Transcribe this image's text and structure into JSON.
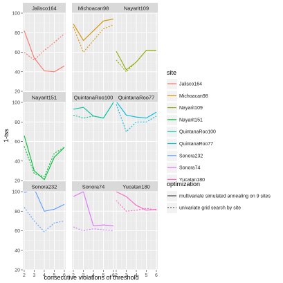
{
  "chart_data": {
    "type": "line",
    "facets": [
      "Jalisco164",
      "Michoacan98",
      "Nayarit109",
      "Nayarit151",
      "QuintanaRoo100",
      "QuintanaRoo77",
      "Sonora232",
      "Sonora74",
      "Yucatan180"
    ],
    "x": [
      2,
      3,
      4,
      5,
      6
    ],
    "xlabel": "consecutive violations of threshold",
    "ylabel": "1-tss",
    "ylim": [
      20,
      100
    ],
    "yticks": [
      20,
      40,
      60,
      80,
      100
    ],
    "xticks": [
      2,
      3,
      4,
      5,
      6
    ],
    "grid": true,
    "site_legend": {
      "title": "site",
      "entries": [
        {
          "name": "Jalisco164",
          "color": "#F8766D"
        },
        {
          "name": "Michoacan98",
          "color": "#D39200"
        },
        {
          "name": "Nayarit109",
          "color": "#93AA00"
        },
        {
          "name": "Nayarit151",
          "color": "#00BA38"
        },
        {
          "name": "QuintanaRoo100",
          "color": "#00C19F"
        },
        {
          "name": "QuintanaRoo77",
          "color": "#00B9E3"
        },
        {
          "name": "Sonora232",
          "color": "#619CFF"
        },
        {
          "name": "Sonora74",
          "color": "#DB72FB"
        },
        {
          "name": "Yucatan180",
          "color": "#FF61C3"
        }
      ]
    },
    "optimization_legend": {
      "title": "optimization",
      "entries": [
        {
          "name": "multivariate simulated annealing on 9 sites",
          "linetype": "solid"
        },
        {
          "name": "univariate grid search by site",
          "linetype": "dashed"
        }
      ]
    },
    "series": [
      {
        "site": "Jalisco164",
        "solid": [
          82,
          54,
          41,
          40,
          46
        ],
        "dashed": [
          60,
          52,
          62,
          70,
          79
        ]
      },
      {
        "site": "Michoacan98",
        "solid": [
          89,
          72,
          82,
          92,
          94
        ],
        "dashed": [
          86,
          60,
          72,
          84,
          88
        ]
      },
      {
        "site": "Nayarit109",
        "solid": [
          61,
          42,
          50,
          62,
          62
        ],
        "dashed": [
          52,
          40,
          50,
          62,
          62
        ]
      },
      {
        "site": "Nayarit151",
        "solid": [
          66,
          30,
          21,
          44,
          54
        ],
        "dashed": [
          55,
          27,
          24,
          48,
          54
        ]
      },
      {
        "site": "QuintanaRoo100",
        "solid": [
          93,
          95,
          86,
          84,
          100
        ],
        "dashed": [
          87,
          84,
          86,
          84,
          100
        ]
      },
      {
        "site": "QuintanaRoo77",
        "solid": [
          101,
          87,
          85,
          84,
          90
        ],
        "dashed": [
          98,
          70,
          80,
          80,
          86
        ]
      },
      {
        "site": "Sonora232",
        "solid": [
          99,
          103,
          80,
          82,
          87
        ],
        "dashed": [
          84,
          70,
          59,
          68,
          70
        ]
      },
      {
        "site": "Sonora74",
        "solid": [
          95,
          100,
          65,
          66,
          65
        ],
        "dashed": [
          64,
          60,
          62,
          61,
          60
        ]
      },
      {
        "site": "Yucatan180",
        "solid": [
          100,
          95,
          86,
          81,
          82
        ],
        "dashed": [
          91,
          80,
          81,
          83,
          81
        ]
      }
    ]
  }
}
